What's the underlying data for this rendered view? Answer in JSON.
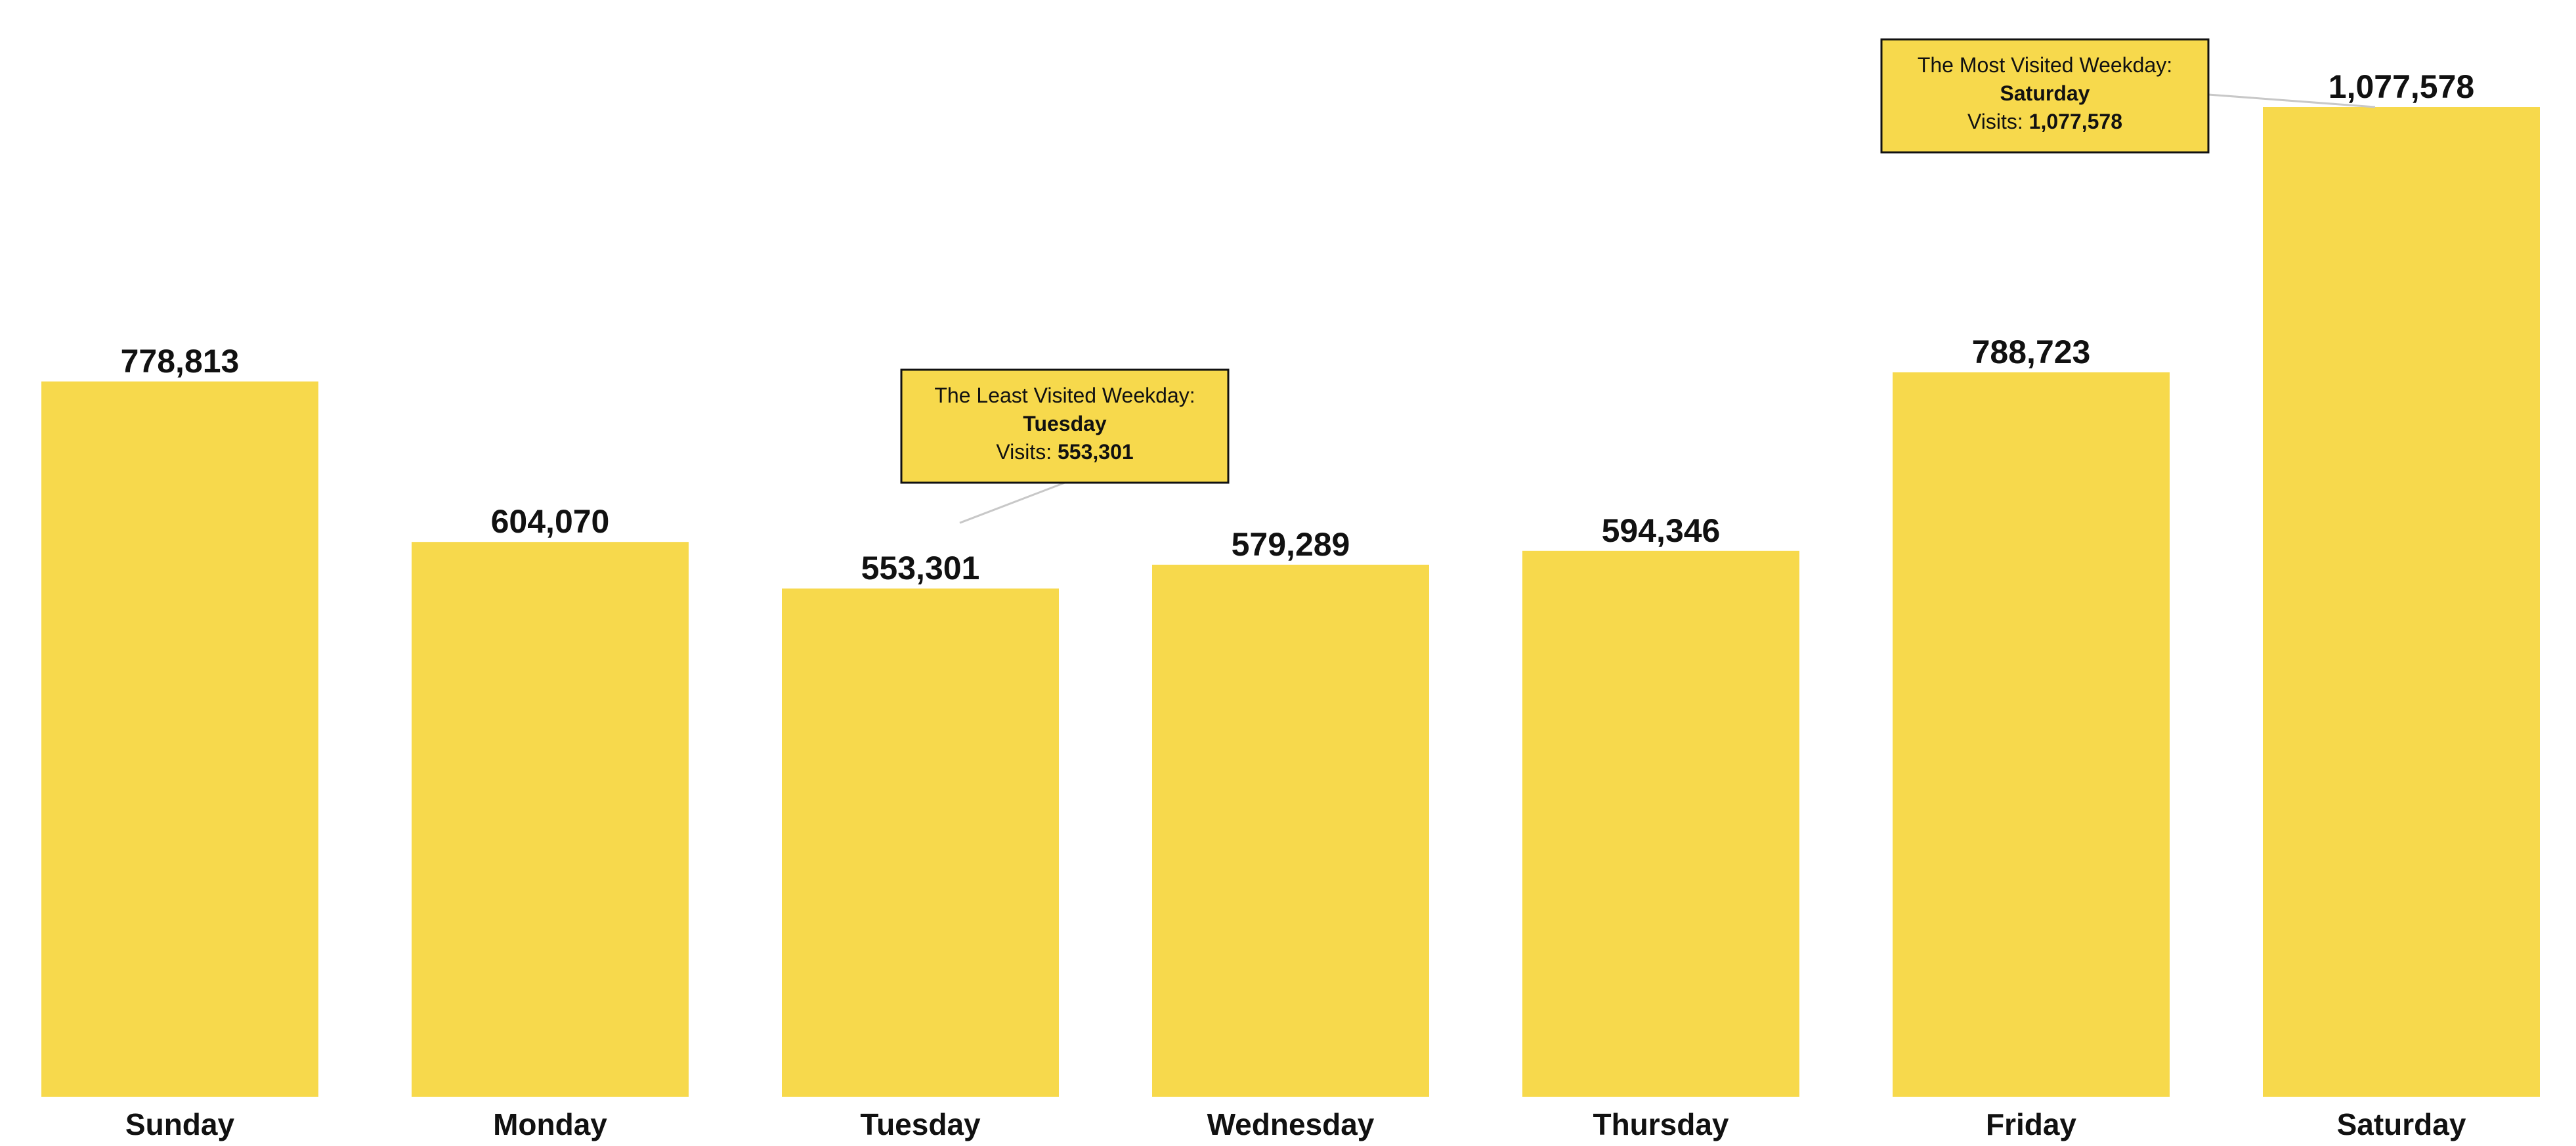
{
  "chart_data": {
    "type": "bar",
    "categories": [
      "Sunday",
      "Monday",
      "Tuesday",
      "Wednesday",
      "Thursday",
      "Friday",
      "Saturday"
    ],
    "values": [
      778813,
      604070,
      553301,
      579289,
      594346,
      788723,
      1077578
    ],
    "value_labels": [
      "778,813",
      "604,070",
      "553,301",
      "579,289",
      "594,346",
      "788,723",
      "1,077,578"
    ],
    "ylim": [
      0,
      1077578
    ],
    "grid": false,
    "bar_color": "#F7D94C",
    "annotations": [
      {
        "target": "Tuesday",
        "line1": "The Least Visited Weekday:",
        "line2": "Tuesday",
        "line3_prefix": "Visits: ",
        "line3_value": "553,301"
      },
      {
        "target": "Saturday",
        "line1": "The Most Visited Weekday:",
        "line2": "Saturday",
        "line3_prefix": "Visits: ",
        "line3_value": "1,077,578"
      }
    ]
  }
}
